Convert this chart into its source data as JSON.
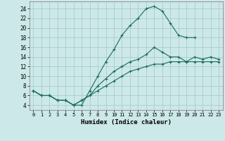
{
  "xlabel": "Humidex (Indice chaleur)",
  "background_color": "#cce8e8",
  "grid_color": "#aacccc",
  "line_color": "#1a6b5a",
  "xlim": [
    -0.5,
    23.5
  ],
  "ylim": [
    3.0,
    25.5
  ],
  "xticks": [
    0,
    1,
    2,
    3,
    4,
    5,
    6,
    7,
    8,
    9,
    10,
    11,
    12,
    13,
    14,
    15,
    16,
    17,
    18,
    19,
    20,
    21,
    22,
    23
  ],
  "yticks": [
    4,
    6,
    8,
    10,
    12,
    14,
    16,
    18,
    20,
    22,
    24
  ],
  "curve1_x": [
    0,
    1,
    2,
    3,
    4,
    5,
    6,
    7,
    8,
    9,
    10,
    11,
    12,
    13,
    14,
    15,
    16,
    17,
    18,
    19,
    20
  ],
  "curve1_y": [
    7,
    6,
    6,
    5,
    5,
    4,
    4,
    7,
    10,
    13,
    15.5,
    18.5,
    20.5,
    22,
    24,
    24.5,
    23.5,
    21,
    18.5,
    18,
    18
  ],
  "curve2_x": [
    0,
    1,
    2,
    3,
    4,
    5,
    6,
    7,
    8,
    9,
    10,
    11,
    12,
    13,
    14,
    15,
    16,
    17,
    18,
    19,
    20,
    21,
    22,
    23
  ],
  "curve2_y": [
    7,
    6,
    6,
    5,
    5,
    4,
    5,
    6,
    8,
    9.5,
    11,
    12,
    13,
    13.5,
    14.5,
    16,
    15,
    14,
    14,
    13,
    14,
    13.5,
    14,
    13.5
  ],
  "curve3_x": [
    0,
    1,
    2,
    3,
    4,
    5,
    6,
    7,
    8,
    9,
    10,
    11,
    12,
    13,
    14,
    15,
    16,
    17,
    18,
    19,
    20,
    21,
    22,
    23
  ],
  "curve3_y": [
    7,
    6,
    6,
    5,
    5,
    4,
    5,
    6,
    7,
    8,
    9,
    10,
    11,
    11.5,
    12,
    12.5,
    12.5,
    13,
    13,
    13,
    13,
    13,
    13,
    13
  ]
}
